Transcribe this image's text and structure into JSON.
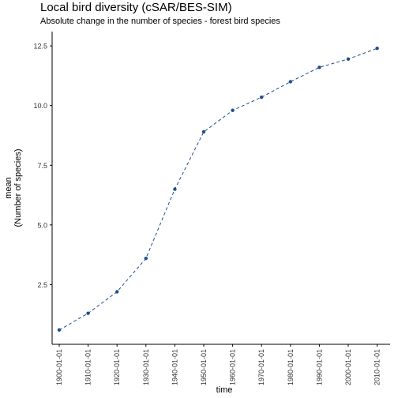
{
  "chart_data": {
    "type": "line",
    "title": "Local bird diversity (cSAR/BES-SIM)",
    "subtitle": "Absolute change in the number of species - forest bird species",
    "xlabel": "time",
    "ylabel_lines": [
      "mean",
      "(Number of species)"
    ],
    "x": [
      "1900-01-01",
      "1910-01-01",
      "1920-01-01",
      "1930-01-01",
      "1940-01-01",
      "1950-01-01",
      "1960-01-01",
      "1970-01-01",
      "1980-01-01",
      "1990-01-01",
      "2000-01-01",
      "2010-01-01"
    ],
    "series": [
      {
        "values": [
          0.6,
          1.3,
          2.2,
          3.6,
          6.5,
          8.9,
          9.8,
          10.35,
          11.0,
          11.6,
          11.95,
          12.4
        ]
      }
    ],
    "yticks": [
      "2.5",
      "5.0",
      "7.5",
      "10.0",
      "12.5"
    ],
    "ylim": [
      0.0,
      13.1
    ],
    "grid": false,
    "line_style": "dashed",
    "colors": {
      "series": "#1F4E8C",
      "axis": "#000000"
    }
  }
}
